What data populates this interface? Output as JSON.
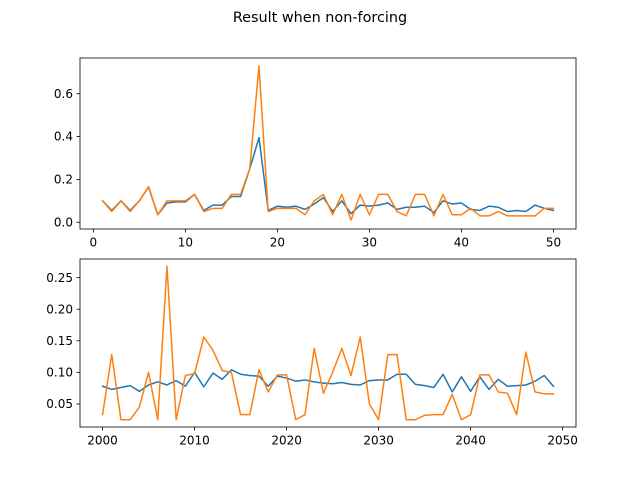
{
  "figure": {
    "suptitle": "Result when non-forcing"
  },
  "chart_data": [
    {
      "type": "line",
      "title": "",
      "xlabel": "",
      "ylabel": "",
      "xlim": [
        -1.45,
        52.45
      ],
      "ylim": [
        -0.0315,
        0.7665
      ],
      "xticks": [
        0,
        10,
        20,
        30,
        40,
        50
      ],
      "yticks": [
        0.0,
        0.2,
        0.4,
        0.6
      ],
      "ytick_labels": [
        "0.0",
        "0.2",
        "0.4",
        "0.6"
      ],
      "grid": false,
      "legend": "none",
      "x": [
        1,
        2,
        3,
        4,
        5,
        6,
        7,
        8,
        9,
        10,
        11,
        12,
        13,
        14,
        15,
        16,
        17,
        18,
        19,
        20,
        21,
        22,
        23,
        24,
        25,
        26,
        27,
        28,
        29,
        30,
        31,
        32,
        33,
        34,
        35,
        36,
        37,
        38,
        39,
        40,
        41,
        42,
        43,
        44,
        45,
        46,
        47,
        48,
        49,
        50
      ],
      "series": [
        {
          "color": "#1f77b4",
          "values": [
            0.1,
            0.055,
            0.1,
            0.055,
            0.1,
            0.165,
            0.035,
            0.09,
            0.095,
            0.095,
            0.13,
            0.055,
            0.08,
            0.08,
            0.12,
            0.12,
            0.25,
            0.395,
            0.055,
            0.075,
            0.07,
            0.075,
            0.06,
            0.085,
            0.115,
            0.05,
            0.1,
            0.04,
            0.08,
            0.075,
            0.08,
            0.09,
            0.06,
            0.07,
            0.07,
            0.075,
            0.045,
            0.1,
            0.085,
            0.09,
            0.06,
            0.055,
            0.075,
            0.07,
            0.05,
            0.055,
            0.05,
            0.08,
            0.065,
            0.055
          ]
        },
        {
          "color": "#ff7f0e",
          "values": [
            0.1,
            0.05,
            0.1,
            0.05,
            0.1,
            0.165,
            0.035,
            0.1,
            0.1,
            0.1,
            0.13,
            0.05,
            0.065,
            0.065,
            0.13,
            0.13,
            0.25,
            0.73,
            0.05,
            0.065,
            0.065,
            0.065,
            0.035,
            0.1,
            0.13,
            0.035,
            0.13,
            0.01,
            0.13,
            0.035,
            0.13,
            0.13,
            0.05,
            0.03,
            0.13,
            0.13,
            0.03,
            0.13,
            0.035,
            0.035,
            0.065,
            0.03,
            0.03,
            0.05,
            0.03,
            0.03,
            0.03,
            0.03,
            0.065,
            0.065
          ]
        }
      ]
    },
    {
      "type": "line",
      "title": "",
      "xlabel": "",
      "ylabel": "",
      "xlim": [
        1997.55,
        2051.45
      ],
      "ylim": [
        0.0135,
        0.2795
      ],
      "xticks": [
        2000,
        2010,
        2020,
        2030,
        2040,
        2050
      ],
      "yticks": [
        0.05,
        0.1,
        0.15,
        0.2,
        0.25
      ],
      "ytick_labels": [
        "0.05",
        "0.10",
        "0.15",
        "0.20",
        "0.25"
      ],
      "grid": false,
      "legend": "none",
      "x": [
        2000,
        2001,
        2002,
        2003,
        2004,
        2005,
        2006,
        2007,
        2008,
        2009,
        2010,
        2011,
        2012,
        2013,
        2014,
        2015,
        2016,
        2017,
        2018,
        2019,
        2020,
        2021,
        2022,
        2023,
        2024,
        2025,
        2026,
        2027,
        2028,
        2029,
        2030,
        2031,
        2032,
        2033,
        2034,
        2035,
        2036,
        2037,
        2038,
        2039,
        2040,
        2041,
        2042,
        2043,
        2044,
        2045,
        2046,
        2047,
        2048,
        2049
      ],
      "series": [
        {
          "color": "#1f77b4",
          "values": [
            0.078,
            0.073,
            0.076,
            0.079,
            0.07,
            0.08,
            0.085,
            0.08,
            0.087,
            0.078,
            0.1,
            0.077,
            0.099,
            0.089,
            0.104,
            0.097,
            0.095,
            0.094,
            0.078,
            0.094,
            0.091,
            0.086,
            0.088,
            0.085,
            0.083,
            0.082,
            0.084,
            0.081,
            0.08,
            0.087,
            0.088,
            0.088,
            0.097,
            0.097,
            0.081,
            0.079,
            0.076,
            0.097,
            0.069,
            0.093,
            0.07,
            0.093,
            0.073,
            0.089,
            0.078,
            0.079,
            0.08,
            0.086,
            0.095,
            0.078
          ]
        },
        {
          "color": "#ff7f0e",
          "values": [
            0.033,
            0.128,
            0.025,
            0.025,
            0.045,
            0.1,
            0.025,
            0.268,
            0.025,
            0.095,
            0.098,
            0.156,
            0.135,
            0.103,
            0.1,
            0.033,
            0.033,
            0.104,
            0.069,
            0.096,
            0.096,
            0.025,
            0.033,
            0.138,
            0.067,
            0.1,
            0.138,
            0.095,
            0.156,
            0.05,
            0.025,
            0.128,
            0.128,
            0.025,
            0.025,
            0.032,
            0.033,
            0.033,
            0.065,
            0.025,
            0.033,
            0.096,
            0.096,
            0.069,
            0.067,
            0.033,
            0.132,
            0.069,
            0.066,
            0.066
          ]
        }
      ]
    }
  ]
}
